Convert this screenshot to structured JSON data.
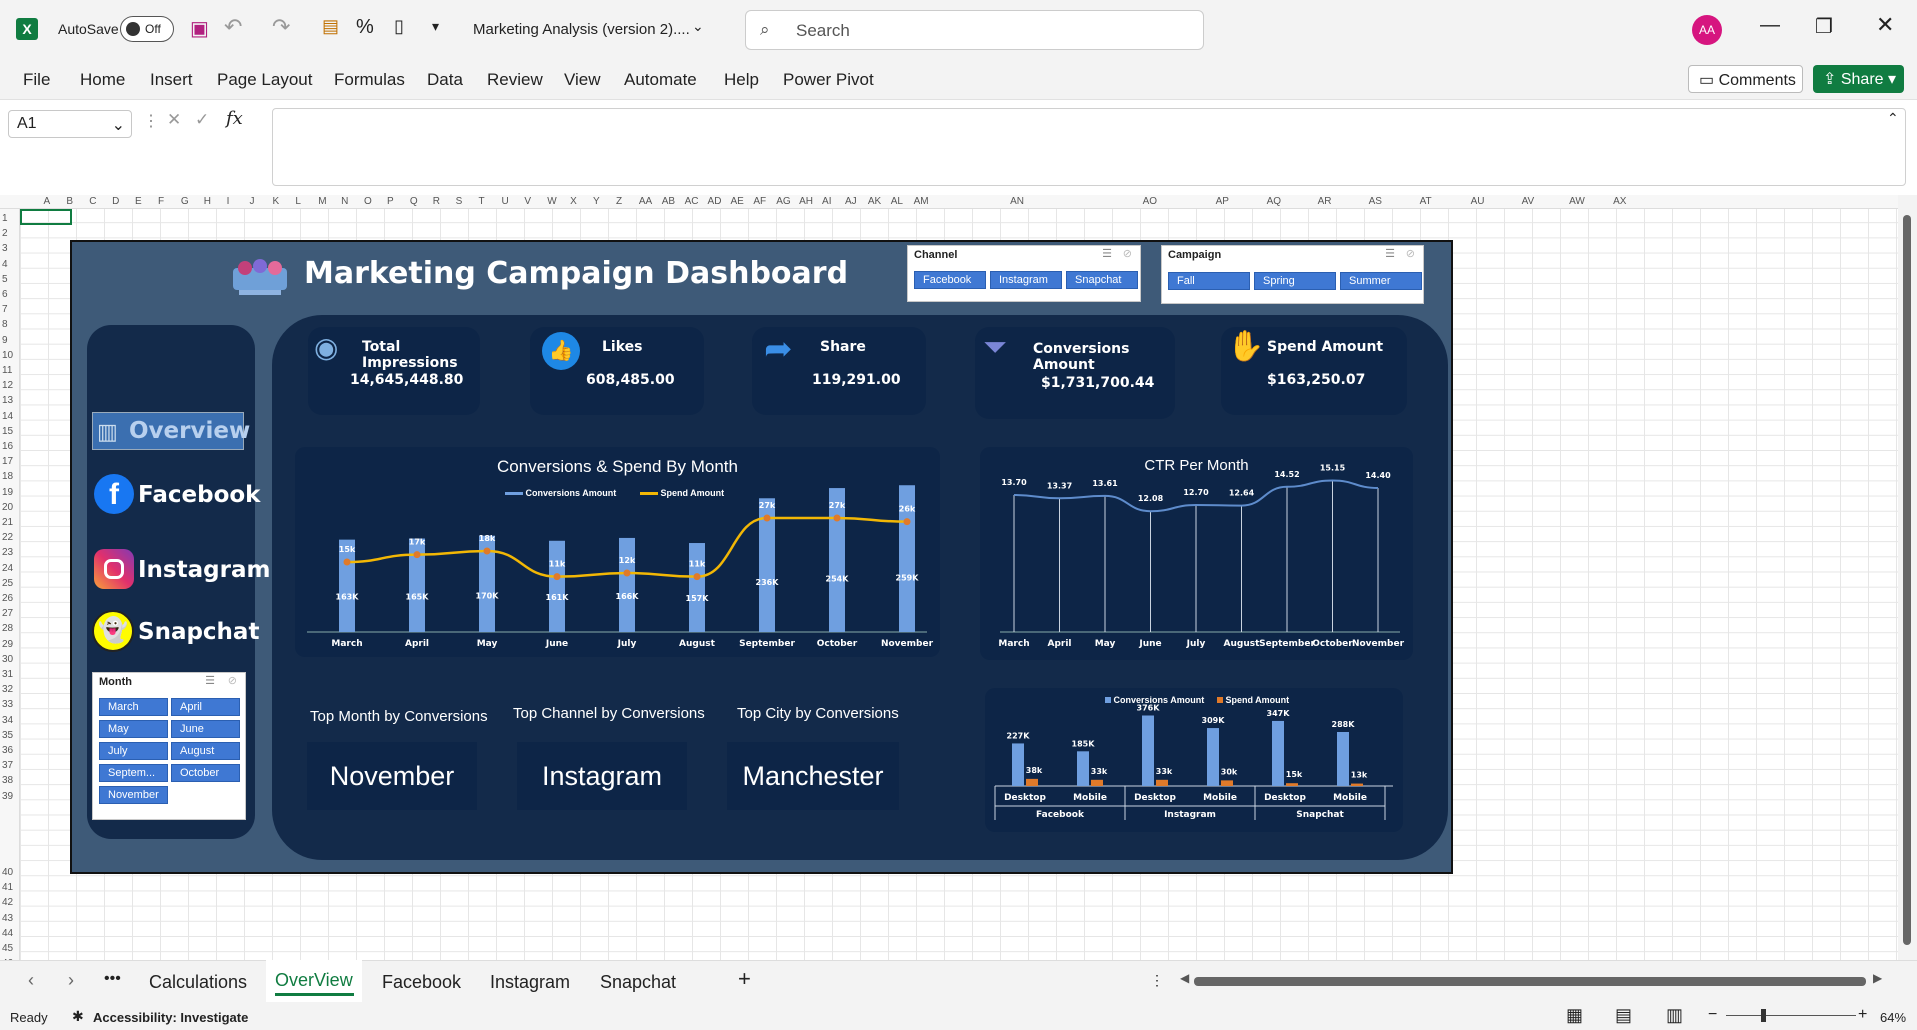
{
  "app": {
    "autosave_label": "AutoSave",
    "autosave_state": "Off",
    "doc_title": "Marketing Analysis (version 2)....",
    "search_placeholder": "Search",
    "avatar": "AA",
    "comments": "Comments",
    "share": "Share"
  },
  "menu": [
    "File",
    "Home",
    "Insert",
    "Page Layout",
    "Formulas",
    "Data",
    "Review",
    "View",
    "Automate",
    "Help",
    "Power Pivot"
  ],
  "namebox": "A1",
  "columns": [
    "A",
    "B",
    "C",
    "D",
    "E",
    "F",
    "G",
    "H",
    "I",
    "J",
    "K",
    "L",
    "M",
    "N",
    "O",
    "P",
    "Q",
    "R",
    "S",
    "T",
    "U",
    "V",
    "W",
    "X",
    "Y",
    "Z",
    "AA",
    "AB",
    "AC",
    "AD",
    "AE",
    "AF",
    "AG",
    "AH",
    "AI",
    "AJ",
    "AK",
    "AL",
    "AM",
    "AN",
    "AO",
    "AP",
    "AQ",
    "AR",
    "AS",
    "AT",
    "AU",
    "AV",
    "AW",
    "AX"
  ],
  "rows": [
    "1",
    "2",
    "3",
    "4",
    "5",
    "6",
    "7",
    "8",
    "9",
    "10",
    "11",
    "12",
    "13",
    "14",
    "15",
    "16",
    "17",
    "18",
    "19",
    "20",
    "21",
    "22",
    "23",
    "24",
    "25",
    "26",
    "27",
    "28",
    "29",
    "30",
    "31",
    "32",
    "33",
    "34",
    "35",
    "36",
    "37",
    "38",
    "39",
    "40",
    "41",
    "42",
    "43",
    "44",
    "45",
    "46"
  ],
  "dashboard": {
    "title": "Marketing Campaign Dashboard",
    "nav": [
      "Overview",
      "Facebook",
      "Instagram",
      "Snapchat"
    ],
    "kpis": [
      {
        "label": "Total Impressions",
        "value": "14,645,448.80"
      },
      {
        "label": "Likes",
        "value": "608,485.00"
      },
      {
        "label": "Share",
        "value": "119,291.00"
      },
      {
        "label": "Conversions Amount",
        "value": "$1,731,700.44"
      },
      {
        "label": "Spend Amount",
        "value": "$163,250.07"
      }
    ],
    "slicer_channel": {
      "header": "Channel",
      "items": [
        "Facebook",
        "Instagram",
        "Snapchat"
      ]
    },
    "slicer_campaign": {
      "header": "Campaign",
      "items": [
        "Fall",
        "Spring",
        "Summer"
      ]
    },
    "slicer_month": {
      "header": "Month",
      "items": [
        "March",
        "April",
        "May",
        "June",
        "July",
        "August",
        "Septem...",
        "October",
        "November"
      ]
    },
    "top": [
      {
        "caption": "Top Month by Conversions",
        "value": "November"
      },
      {
        "caption": "Top Channel by Conversions",
        "value": "Instagram"
      },
      {
        "caption": "Top City by Conversions",
        "value": "Manchester"
      }
    ]
  },
  "chart_data": [
    {
      "type": "bar",
      "title": "Conversions & Spend By Month",
      "categories": [
        "March",
        "April",
        "May",
        "June",
        "July",
        "August",
        "September",
        "October",
        "November"
      ],
      "series": [
        {
          "name": "Conversions Amount",
          "values": [
            163,
            165,
            170,
            161,
            166,
            157,
            236,
            254,
            259
          ],
          "labels": [
            "163K",
            "165K",
            "170K",
            "161K",
            "166K",
            "157K",
            "236K",
            "254K",
            "259K"
          ]
        },
        {
          "name": "Spend Amount",
          "values": [
            15,
            17,
            18,
            11,
            12,
            11,
            27,
            27,
            26
          ],
          "labels": [
            "15k",
            "17k",
            "18k",
            "11k",
            "12k",
            "11k",
            "27k",
            "27k",
            "26k"
          ]
        }
      ]
    },
    {
      "type": "line",
      "title": "CTR Per Month",
      "categories": [
        "March",
        "April",
        "May",
        "June",
        "July",
        "August",
        "September",
        "October",
        "November"
      ],
      "values": [
        13.7,
        13.37,
        13.61,
        12.08,
        12.7,
        12.64,
        14.52,
        15.15,
        14.4
      ],
      "labels": [
        "13.70",
        "13.37",
        "13.61",
        "12.08",
        "12.70",
        "12.64",
        "14.52",
        "15.15",
        "14.40"
      ]
    },
    {
      "type": "bar",
      "categories": [
        "Desktop",
        "Mobile",
        "Desktop",
        "Mobile",
        "Desktop",
        "Mobile"
      ],
      "groups": [
        "Facebook",
        "Instagram",
        "Snapchat"
      ],
      "series": [
        {
          "name": "Conversions Amount",
          "values": [
            227,
            185,
            376,
            309,
            347,
            288
          ],
          "labels": [
            "227K",
            "185K",
            "376K",
            "309K",
            "347K",
            "288K"
          ]
        },
        {
          "name": "Spend Amount",
          "values": [
            38,
            33,
            33,
            30,
            15,
            13
          ],
          "labels": [
            "38k",
            "33k",
            "33k",
            "30k",
            "15k",
            "13k"
          ]
        }
      ]
    }
  ],
  "sheets": [
    "Calculations",
    "OverView",
    "Facebook",
    "Instagram",
    "Snapchat"
  ],
  "status": {
    "ready": "Ready",
    "accessibility": "Accessibility: Investigate",
    "zoom": "64%"
  },
  "colors": {
    "dash_bg": "#3e5a78",
    "panel": "#0d2547",
    "bar_blue": "#6f9fe0",
    "spend_orange": "#e07a2a",
    "line_gold": "#f2b705",
    "excel_green": "#107c41"
  }
}
